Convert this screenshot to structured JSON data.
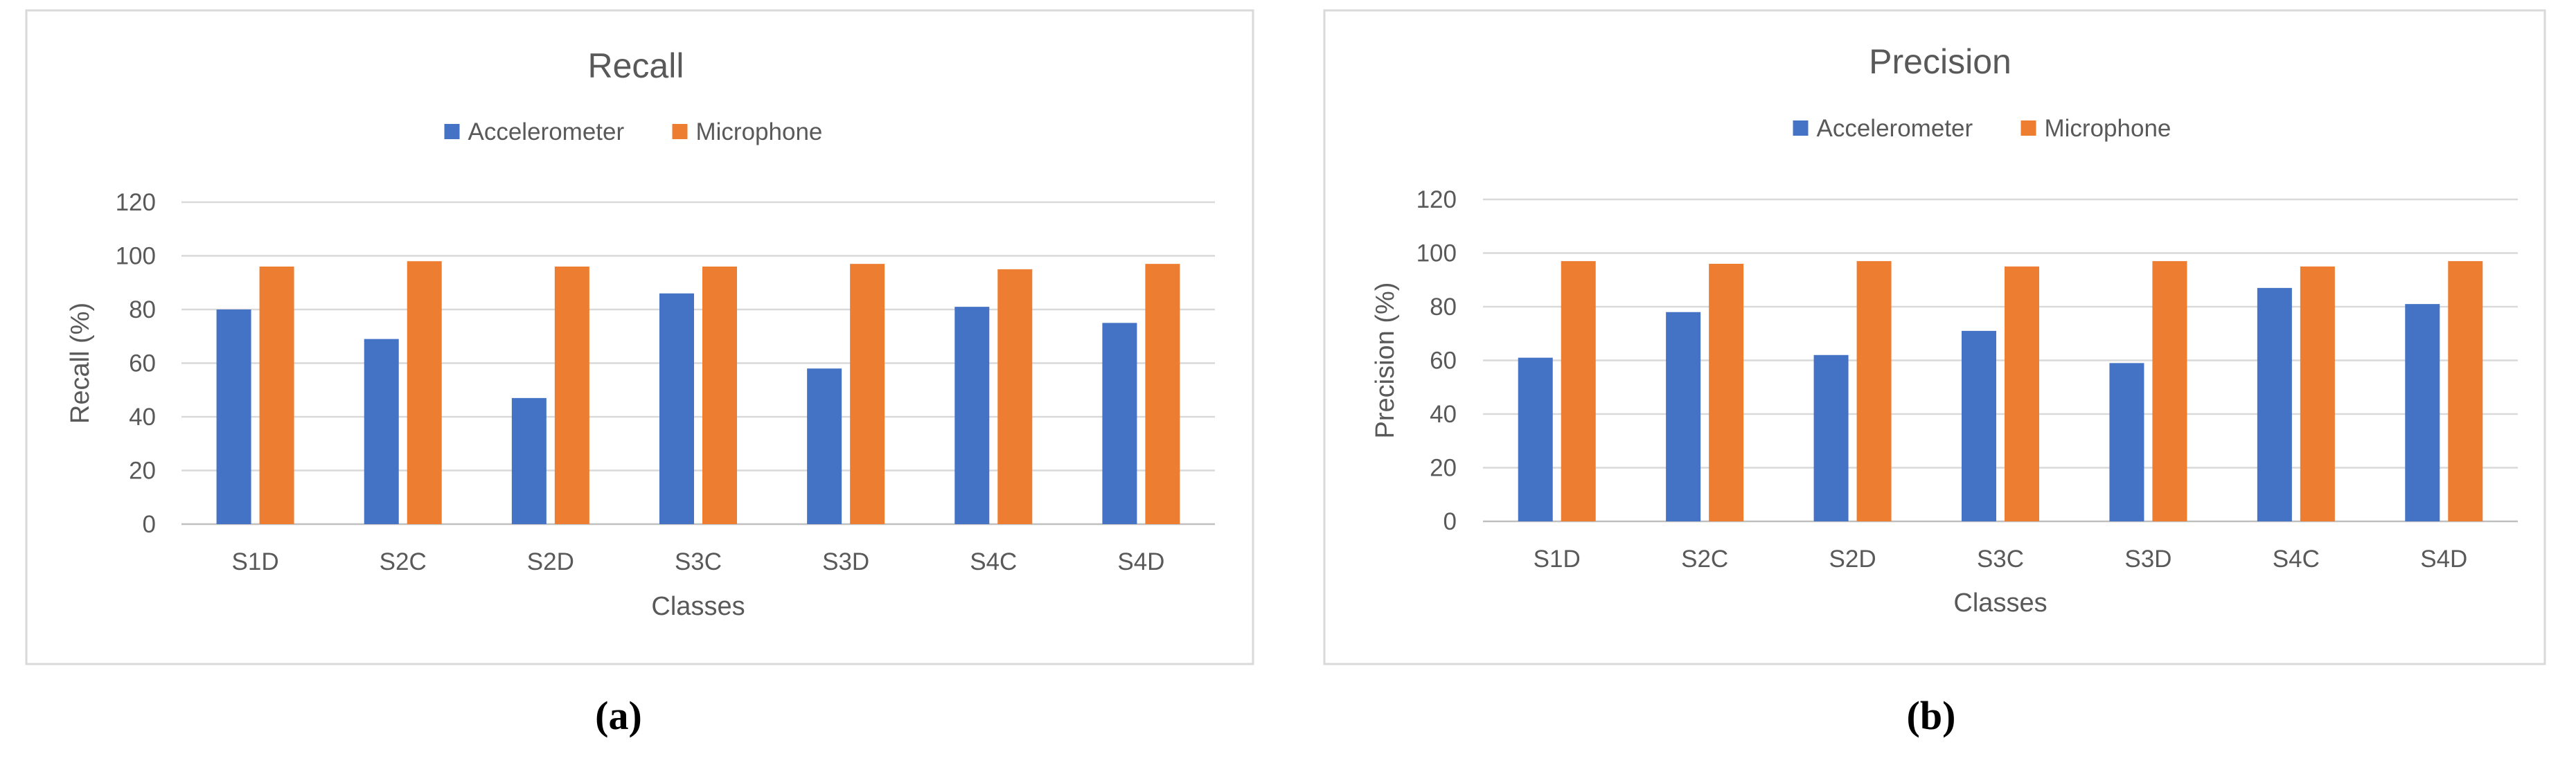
{
  "chart_data": [
    {
      "id": "a",
      "type": "bar",
      "title": "Recall",
      "xlabel": "Classes",
      "ylabel": "Recall (%)",
      "ylim": [
        0,
        120
      ],
      "yticks": [
        0,
        20,
        40,
        60,
        80,
        100,
        120
      ],
      "grid": true,
      "legend_position": "top-center",
      "categories": [
        "S1D",
        "S2C",
        "S2D",
        "S3C",
        "S3D",
        "S4C",
        "S4D"
      ],
      "series": [
        {
          "name": "Accelerometer",
          "color": "#4472C4",
          "values": [
            80,
            69,
            47,
            86,
            58,
            81,
            75
          ]
        },
        {
          "name": "Microphone",
          "color": "#ED7D31",
          "values": [
            96,
            98,
            96,
            96,
            97,
            95,
            97
          ]
        }
      ]
    },
    {
      "id": "b",
      "type": "bar",
      "title": "Precision",
      "xlabel": "Classes",
      "ylabel": "Precision (%)",
      "ylim": [
        0,
        120
      ],
      "yticks": [
        0,
        20,
        40,
        60,
        80,
        100,
        120
      ],
      "grid": true,
      "legend_position": "top-center",
      "categories": [
        "S1D",
        "S2C",
        "S2D",
        "S3C",
        "S3D",
        "S4C",
        "S4D"
      ],
      "series": [
        {
          "name": "Accelerometer",
          "color": "#4472C4",
          "values": [
            61,
            78,
            62,
            71,
            59,
            87,
            81
          ]
        },
        {
          "name": "Microphone",
          "color": "#ED7D31",
          "values": [
            97,
            96,
            97,
            95,
            97,
            95,
            97
          ]
        }
      ]
    }
  ],
  "panel_labels": {
    "a": "(a)",
    "b": "(b)"
  }
}
